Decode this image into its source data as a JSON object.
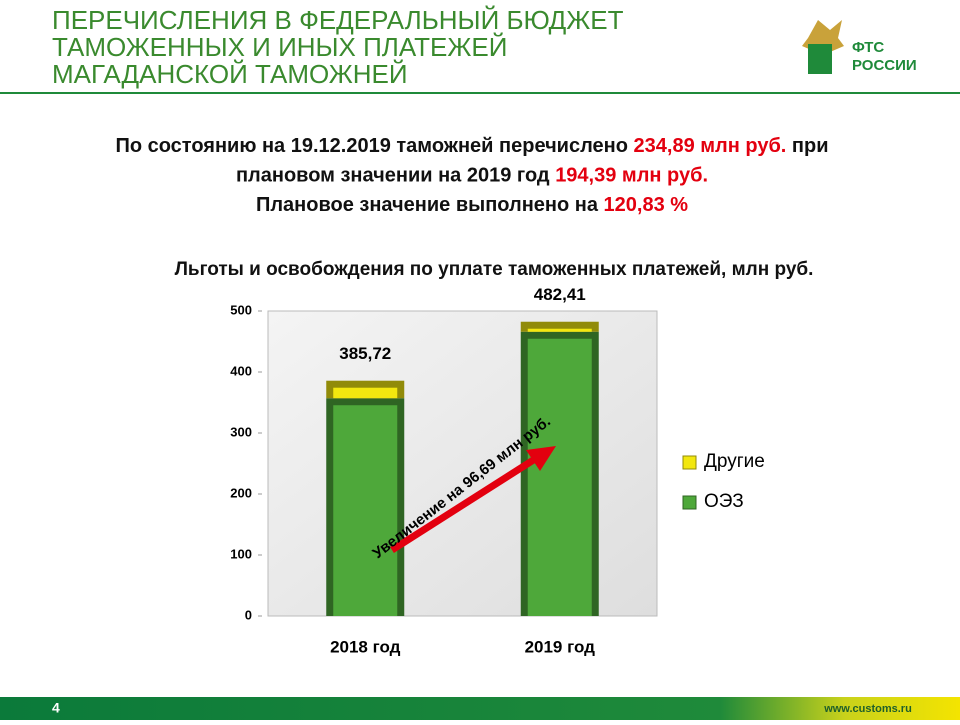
{
  "header": {
    "title": [
      "ПЕРЕЧИСЛЕНИЯ В ФЕДЕРАЛЬНЫЙ БЮДЖЕТ",
      "ТАМОЖЕННЫХ И ИНЫХ ПЛАТЕЖЕЙ",
      "МАГАДАНСКОЙ ТАМОЖНЕЙ"
    ],
    "logo": [
      "ФТС",
      "РОССИИ"
    ]
  },
  "summary": [
    [
      {
        "text": "По состоянию на 19.12.2019 таможней перечислено "
      },
      {
        "text": "234,89 млн руб.",
        "color": "#e3000f"
      },
      {
        "text": " при"
      }
    ],
    [
      {
        "text": "плановом значении на 2019 год "
      },
      {
        "text": "194,39 млн руб.",
        "color": "#e3000f"
      }
    ],
    [
      {
        "text": "Плановое значение выполнено на "
      },
      {
        "text": "120,83 %",
        "color": "#e3000f"
      }
    ]
  ],
  "chart_data": {
    "type": "stacked_bar",
    "title": "Льготы и освобождения по уплате таможенных платежей, млн руб.",
    "categories": [
      "2018 год",
      "2019 год"
    ],
    "series": [
      {
        "name": "ОЭЗ",
        "color": "#4ea83a",
        "values": [
          357,
          466
        ]
      },
      {
        "name": "Другие",
        "color": "#f2e70f",
        "values": [
          28.72,
          16.41
        ]
      }
    ],
    "totals": [
      385.72,
      482.41
    ],
    "total_labels": [
      "385,72",
      "482,41"
    ],
    "ylim": [
      0,
      500
    ],
    "yticks": [
      0,
      100,
      200,
      300,
      400,
      500
    ],
    "grid": false,
    "legend": "right",
    "annotation": "Увеличение на 96,69 млн руб."
  },
  "footer": {
    "page": "4",
    "site": "www.customs.ru"
  }
}
